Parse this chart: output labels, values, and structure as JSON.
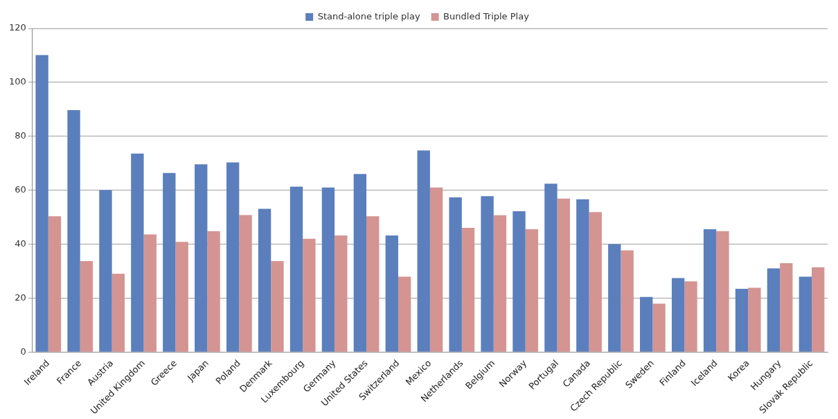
{
  "chart_data": {
    "type": "bar",
    "categories": [
      "Ireland",
      "France",
      "Austria",
      "United Kingdom",
      "Greece",
      "Japan",
      "Poland",
      "Denmark",
      "Luxembourg",
      "Germany",
      "United States",
      "Switzerland",
      "Mexico",
      "Netherlands",
      "Belgium",
      "Norway",
      "Portugal",
      "Canada",
      "Czech Republic",
      "Sweden",
      "Finland",
      "Iceland",
      "Korea",
      "Hungary",
      "Slovak Republic"
    ],
    "series": [
      {
        "name": "Stand-alone triple play",
        "color": "#5b7fbd",
        "values": [
          110.1,
          89.7,
          60,
          73.6,
          66.4,
          69.6,
          70.3,
          53.1,
          61.3,
          61,
          66,
          43.2,
          74.7,
          57.3,
          57.8,
          52.2,
          62.4,
          56.6,
          40,
          20.4,
          27.4,
          45.5,
          23.4,
          31,
          27.9
        ]
      },
      {
        "name": "Bundled Triple Play",
        "color": "#d49492",
        "values": [
          50.3,
          33.7,
          29,
          43.6,
          40.8,
          44.8,
          50.8,
          33.7,
          42,
          43.2,
          50.3,
          27.9,
          61,
          46,
          50.7,
          45.5,
          56.9,
          51.9,
          37.7,
          17.9,
          26.2,
          44.8,
          23.8,
          32.9,
          31.4
        ]
      }
    ],
    "ylim": [
      0,
      120
    ],
    "yticks": [
      0,
      20,
      40,
      60,
      80,
      100,
      120
    ],
    "grid": "y",
    "legend": "top"
  }
}
